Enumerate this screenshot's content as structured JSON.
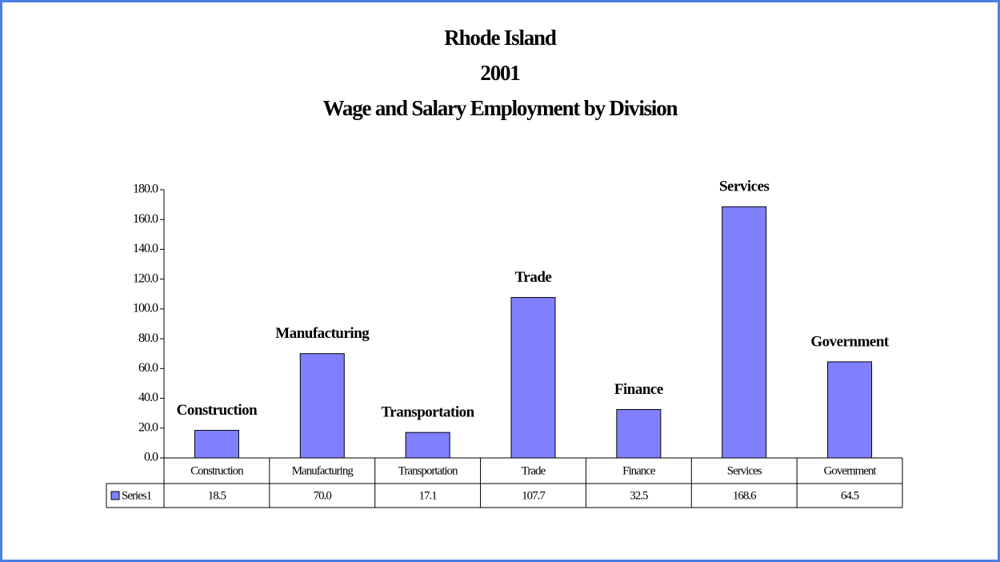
{
  "chart_data": {
    "type": "bar",
    "title": [
      "Rhode Island",
      "2001",
      "Wage and Salary Employment by Division"
    ],
    "categories": [
      "Construction",
      "Manufacturing",
      "Transportation",
      "Trade",
      "Finance",
      "Services",
      "Government"
    ],
    "series": [
      {
        "name": "Series1",
        "color": "#8080ff",
        "values": [
          18.5,
          70.0,
          17.1,
          107.7,
          32.5,
          168.6,
          64.5
        ],
        "value_labels": [
          "18.5",
          "70.0",
          "17.1",
          "107.7",
          "32.5",
          "168.6",
          "64.5"
        ]
      }
    ],
    "ylim": [
      0,
      180
    ],
    "yticks": [
      {
        "value": 0,
        "label": "0.0"
      },
      {
        "value": 20,
        "label": "20.0"
      },
      {
        "value": 40,
        "label": "40.0"
      },
      {
        "value": 60,
        "label": "60.0"
      },
      {
        "value": 80,
        "label": "80.0"
      },
      {
        "value": 100,
        "label": "100.0"
      },
      {
        "value": 120,
        "label": "120.0"
      },
      {
        "value": 140,
        "label": "140.0"
      },
      {
        "value": 160,
        "label": "160.0"
      },
      {
        "value": 180,
        "label": "180.0"
      }
    ],
    "grid": false
  }
}
